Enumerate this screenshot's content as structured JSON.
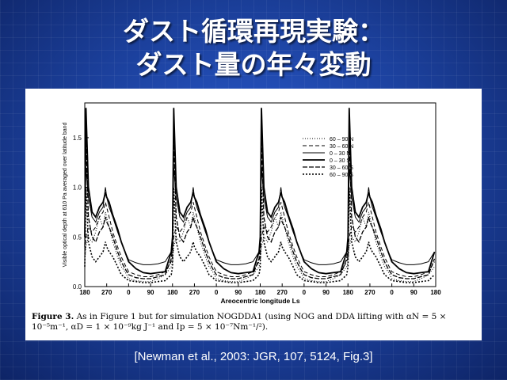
{
  "slide": {
    "title_line1": "ダスト循環再現実験：",
    "title_line2": "ダスト量の年々変動",
    "citation": "[Newman et al., 2003: JGR, 107, 5124, Fig.3]",
    "figure_label": "Figure 3.",
    "caption": "As in Figure 1 but for simulation NOGDDA1 (using NOG and DDA lifting with αN = 5 × 10⁻⁵m⁻¹, αD = 1 × 10⁻⁹kg J⁻¹ and Ip = 5 × 10⁻⁷Nm⁻¹/²)."
  },
  "chart_data": {
    "type": "line",
    "xlabel": "Areocentric longitude Ls",
    "ylabel": "Visible optical depth at 610 Pa averaged over latitude band",
    "x_ticks": [
      "180",
      "270",
      "0",
      "90",
      "180",
      "270",
      "0",
      "90",
      "180",
      "270",
      "0",
      "90",
      "180",
      "270",
      "0",
      "90",
      "180"
    ],
    "y_ticks": [
      "0.0",
      "0.5",
      "1.0",
      "1.5"
    ],
    "ylim": [
      0,
      1.85
    ],
    "x_range_years": 4,
    "legend_position": "top-right",
    "legend": [
      "60 – 90 N",
      "30 – 60 N",
      "0 – 30 N",
      "0 – 30 S",
      "30 – 60 S",
      "60 – 90 S"
    ],
    "annual_cycle_points": {
      "Ls": [
        180,
        185,
        195,
        210,
        225,
        240,
        255,
        265,
        270,
        280,
        295,
        315,
        330,
        345,
        0,
        30,
        60,
        90,
        120,
        150,
        175
      ],
      "series": [
        {
          "name": "60 – 90 N",
          "values": [
            0.25,
            0.4,
            0.5,
            0.45,
            0.55,
            0.7,
            0.6,
            0.75,
            0.7,
            0.6,
            0.45,
            0.3,
            0.2,
            0.15,
            0.08,
            0.06,
            0.05,
            0.05,
            0.08,
            0.12,
            0.2
          ]
        },
        {
          "name": "30 – 60 N",
          "values": [
            0.3,
            0.5,
            0.6,
            0.55,
            0.6,
            0.7,
            0.75,
            0.85,
            0.8,
            0.7,
            0.55,
            0.4,
            0.3,
            0.22,
            0.15,
            0.12,
            0.1,
            0.1,
            0.12,
            0.15,
            0.25
          ]
        },
        {
          "name": "0 – 30 N",
          "values": [
            0.45,
            1.2,
            0.9,
            0.7,
            0.65,
            0.75,
            0.8,
            1.0,
            0.9,
            0.8,
            0.7,
            0.55,
            0.45,
            0.35,
            0.27,
            0.24,
            0.22,
            0.22,
            0.23,
            0.25,
            0.35
          ]
        },
        {
          "name": "0 – 30 S",
          "values": [
            0.5,
            1.8,
            1.0,
            0.75,
            0.7,
            0.8,
            0.85,
            0.95,
            0.9,
            0.85,
            0.72,
            0.58,
            0.45,
            0.35,
            0.25,
            0.18,
            0.14,
            0.13,
            0.14,
            0.15,
            0.35
          ]
        },
        {
          "name": "30 – 60 S",
          "values": [
            0.4,
            1.5,
            0.7,
            0.5,
            0.45,
            0.55,
            0.6,
            0.7,
            0.65,
            0.6,
            0.5,
            0.35,
            0.25,
            0.18,
            0.12,
            0.09,
            0.08,
            0.08,
            0.1,
            0.12,
            0.28
          ]
        },
        {
          "name": "60 – 90 S",
          "values": [
            0.2,
            1.0,
            0.45,
            0.3,
            0.25,
            0.3,
            0.35,
            0.45,
            0.4,
            0.35,
            0.3,
            0.2,
            0.12,
            0.09,
            0.06,
            0.05,
            0.04,
            0.04,
            0.05,
            0.06,
            0.12
          ]
        }
      ]
    }
  }
}
